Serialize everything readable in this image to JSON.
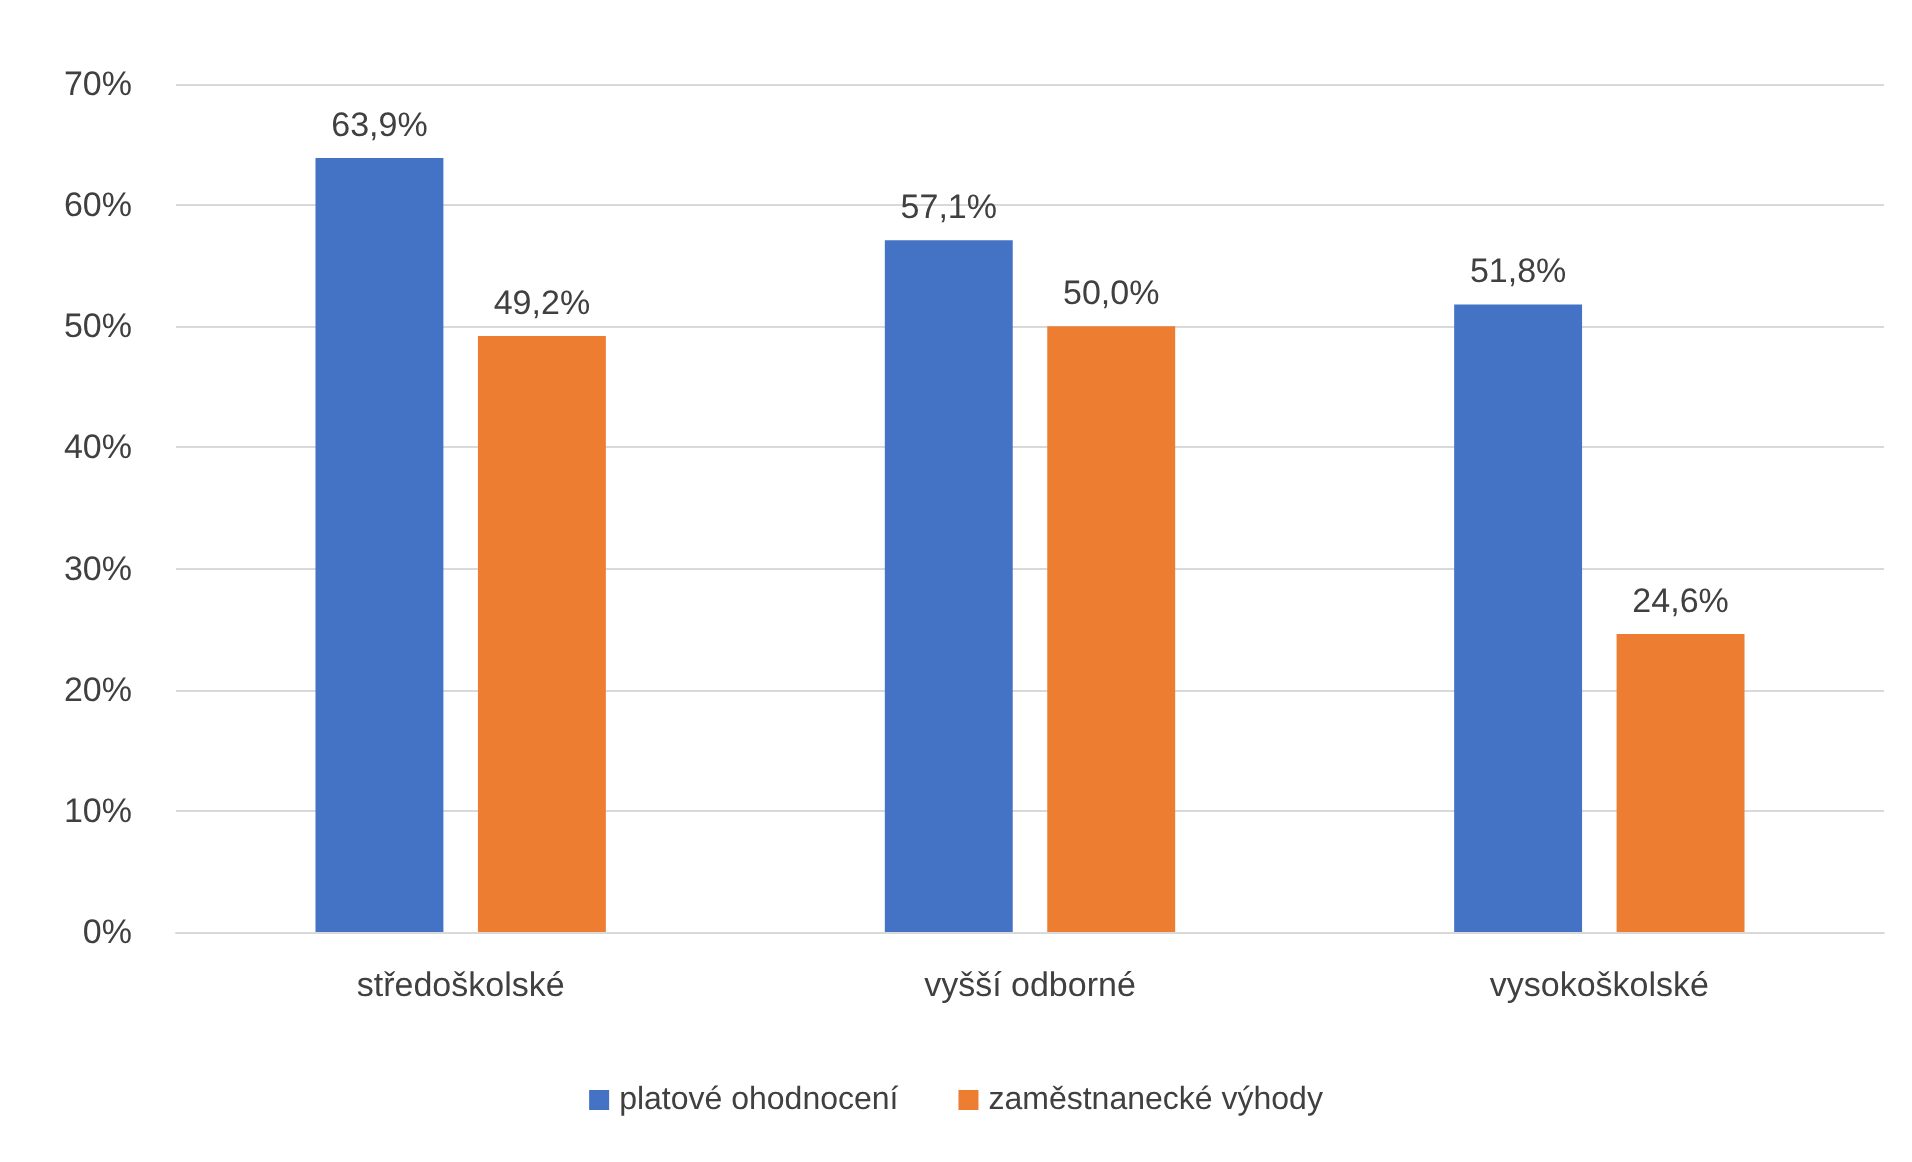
{
  "chart_data": {
    "type": "bar",
    "categories": [
      "středoškolské",
      "vyšší odborné",
      "vysokoškolské"
    ],
    "series": [
      {
        "name": "platové ohodnocení",
        "color": "#4472c4",
        "values": [
          63.9,
          57.1,
          51.8
        ],
        "value_labels": [
          "63,9%",
          "57,1%",
          "51,8%"
        ]
      },
      {
        "name": "zaměstnanecké výhody",
        "color": "#ed7d31",
        "values": [
          49.2,
          50.0,
          24.6
        ],
        "value_labels": [
          "49,2%",
          "50,0%",
          "24,6%"
        ]
      }
    ],
    "ylim": [
      0,
      70
    ],
    "yticks": [
      {
        "value": 0,
        "label": "0%"
      },
      {
        "value": 10,
        "label": "10%"
      },
      {
        "value": 20,
        "label": "20%"
      },
      {
        "value": 30,
        "label": "30%"
      },
      {
        "value": 40,
        "label": "40%"
      },
      {
        "value": 50,
        "label": "50%"
      },
      {
        "value": 60,
        "label": "60%"
      },
      {
        "value": 70,
        "label": "70%"
      }
    ],
    "grid": "y",
    "legend": "bottom"
  }
}
